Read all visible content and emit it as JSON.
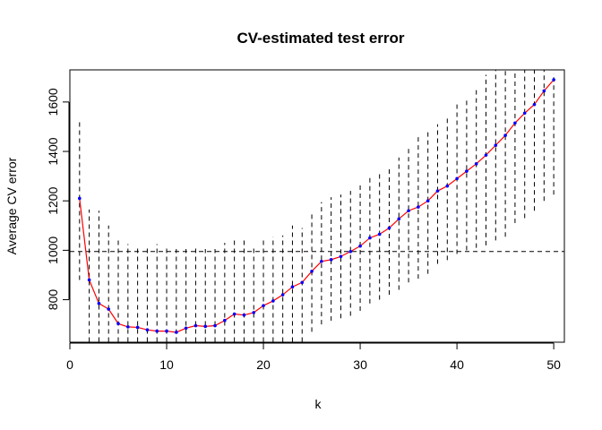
{
  "chart_data": {
    "type": "line",
    "title": "CV-estimated test error",
    "xlabel": "k",
    "ylabel": "Average CV error",
    "xlim": [
      0,
      51.1
    ],
    "ylim": [
      628,
      1730
    ],
    "x_ticks": [
      0,
      10,
      20,
      30,
      40,
      50
    ],
    "y_ticks": [
      800,
      1000,
      1200,
      1400,
      1600
    ],
    "reference_line_y": 995,
    "grid": false,
    "line_color": "#ff0000",
    "point_color": "#0000ff",
    "errorbar_color": "#000000",
    "x": [
      1,
      2,
      3,
      4,
      5,
      6,
      7,
      8,
      9,
      10,
      11,
      12,
      13,
      14,
      15,
      16,
      17,
      18,
      19,
      20,
      21,
      22,
      23,
      24,
      25,
      26,
      27,
      28,
      29,
      30,
      31,
      32,
      33,
      34,
      35,
      36,
      37,
      38,
      39,
      40,
      41,
      42,
      43,
      44,
      45,
      46,
      47,
      48,
      49,
      50
    ],
    "y": [
      1210,
      880,
      785,
      762,
      703,
      690,
      688,
      678,
      673,
      673,
      668,
      685,
      695,
      692,
      695,
      716,
      742,
      738,
      748,
      776,
      795,
      820,
      852,
      870,
      915,
      955,
      962,
      975,
      995,
      1017,
      1050,
      1065,
      1090,
      1127,
      1160,
      1175,
      1200,
      1240,
      1260,
      1290,
      1320,
      1350,
      1385,
      1425,
      1465,
      1515,
      1555,
      1590,
      1645,
      1690
    ],
    "lower": [
      880,
      630,
      630,
      630,
      630,
      630,
      630,
      630,
      630,
      630,
      630,
      630,
      630,
      630,
      630,
      630,
      630,
      630,
      630,
      630,
      630,
      630,
      630,
      630,
      670,
      700,
      715,
      725,
      735,
      755,
      785,
      800,
      820,
      840,
      870,
      885,
      905,
      945,
      960,
      985,
      1000,
      1010,
      1020,
      1040,
      1055,
      1110,
      1130,
      1160,
      1200,
      1225
    ],
    "upper": [
      1525,
      1165,
      1160,
      1100,
      1040,
      1025,
      1020,
      1010,
      1025,
      1015,
      1005,
      1005,
      1010,
      1005,
      1005,
      1030,
      1045,
      1045,
      1010,
      1050,
      1055,
      1060,
      1100,
      1090,
      1150,
      1195,
      1215,
      1225,
      1240,
      1275,
      1305,
      1320,
      1340,
      1375,
      1410,
      1470,
      1490,
      1510,
      1535,
      1590,
      1610,
      1650,
      1710,
      1730,
      1730,
      1730,
      1730,
      1730,
      1730,
      1715
    ]
  }
}
